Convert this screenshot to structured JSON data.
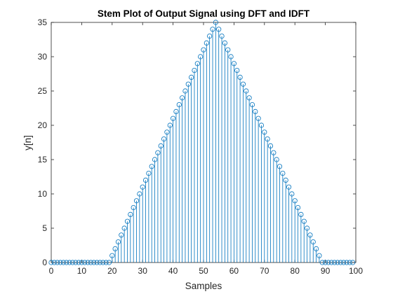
{
  "chart_data": {
    "type": "stem",
    "title": "Stem Plot of Output Signal using DFT and IDFT",
    "xlabel": "Samples",
    "ylabel": "y[n]",
    "xlim": [
      0,
      100
    ],
    "ylim": [
      0,
      35
    ],
    "xticks": [
      0,
      10,
      20,
      30,
      40,
      50,
      60,
      70,
      80,
      90,
      100
    ],
    "yticks": [
      0,
      5,
      10,
      15,
      20,
      25,
      30,
      35
    ],
    "grid": false,
    "series": [
      {
        "color": "#0072bd",
        "marker": "circle-open",
        "x": [
          0,
          1,
          2,
          3,
          4,
          5,
          6,
          7,
          8,
          9,
          10,
          11,
          12,
          13,
          14,
          15,
          16,
          17,
          18,
          19,
          20,
          21,
          22,
          23,
          24,
          25,
          26,
          27,
          28,
          29,
          30,
          31,
          32,
          33,
          34,
          35,
          36,
          37,
          38,
          39,
          40,
          41,
          42,
          43,
          44,
          45,
          46,
          47,
          48,
          49,
          50,
          51,
          52,
          53,
          54,
          55,
          56,
          57,
          58,
          59,
          60,
          61,
          62,
          63,
          64,
          65,
          66,
          67,
          68,
          69,
          70,
          71,
          72,
          73,
          74,
          75,
          76,
          77,
          78,
          79,
          80,
          81,
          82,
          83,
          84,
          85,
          86,
          87,
          88,
          89,
          90,
          91,
          92,
          93,
          94,
          95,
          96,
          97,
          98,
          99
        ],
        "y": [
          0,
          0,
          0,
          0,
          0,
          0,
          0,
          0,
          0,
          0,
          0,
          0,
          0,
          0,
          0,
          0,
          0,
          0,
          0,
          0,
          1,
          2,
          3,
          4,
          5,
          6,
          7,
          8,
          9,
          10,
          11,
          12,
          13,
          14,
          15,
          16,
          17,
          18,
          19,
          20,
          21,
          22,
          23,
          24,
          25,
          26,
          27,
          28,
          29,
          30,
          31,
          32,
          33,
          34,
          35,
          34,
          33,
          32,
          31,
          30,
          29,
          28,
          27,
          26,
          25,
          24,
          23,
          22,
          21,
          20,
          19,
          18,
          17,
          16,
          15,
          14,
          13,
          12,
          11,
          10,
          9,
          8,
          7,
          6,
          5,
          4,
          3,
          2,
          1,
          0,
          0,
          0,
          0,
          0,
          0,
          0,
          0,
          0,
          0,
          0
        ]
      }
    ]
  }
}
